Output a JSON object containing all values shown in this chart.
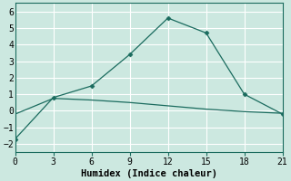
{
  "line1_x": [
    0,
    3,
    6,
    9,
    12,
    15,
    18,
    21
  ],
  "line1_y": [
    -1.7,
    0.8,
    1.5,
    3.4,
    5.6,
    4.7,
    1.0,
    -0.2
  ],
  "line2_x": [
    0,
    3,
    6,
    9,
    12,
    15,
    18,
    21
  ],
  "line2_y": [
    -0.2,
    0.75,
    0.65,
    0.5,
    0.3,
    0.1,
    -0.05,
    -0.15
  ],
  "line_color": "#1a6b5e",
  "bg_color": "#cce8e0",
  "grid_color": "#ffffff",
  "xlabel": "Humidex (Indice chaleur)",
  "xlim": [
    0,
    21
  ],
  "ylim": [
    -2.5,
    6.5
  ],
  "xticks": [
    0,
    3,
    6,
    9,
    12,
    15,
    18,
    21
  ],
  "yticks": [
    -2,
    -1,
    0,
    1,
    2,
    3,
    4,
    5,
    6
  ],
  "tick_font_size": 7,
  "label_font_size": 7.5
}
